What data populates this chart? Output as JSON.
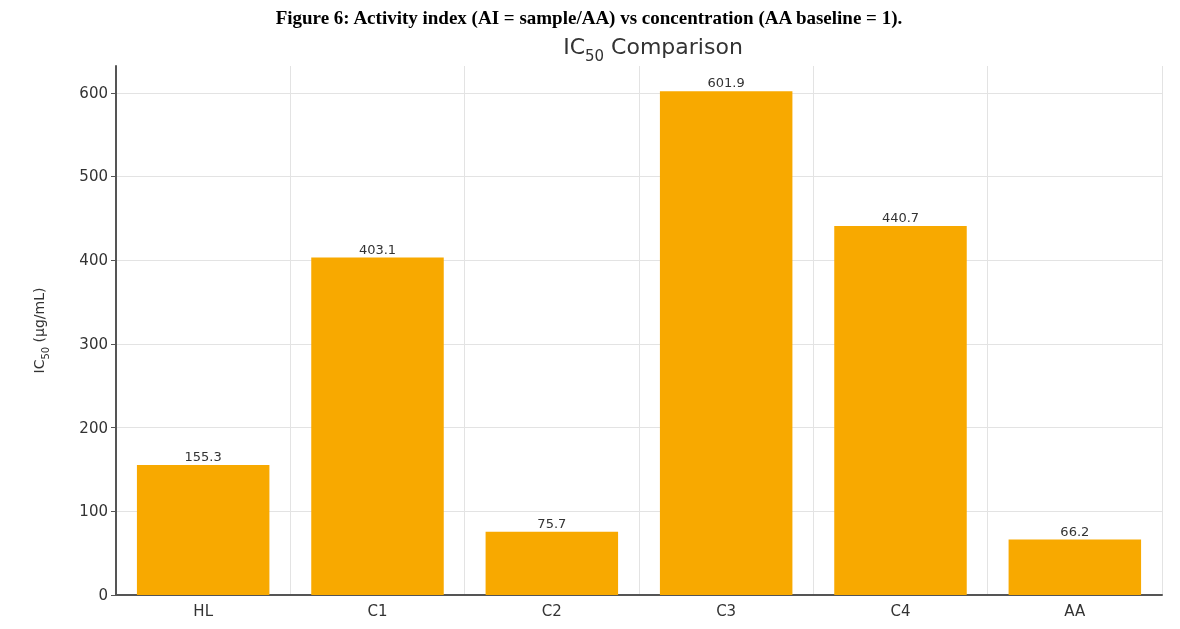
{
  "chart_data": {
    "type": "bar",
    "title": "IC$_{50}$ Comparison",
    "ylabel": "IC$_{50}$ (µg/mL)",
    "annotations": [
      "Figure 6: Activity index (AI = sample/AA) vs concentration (AA baseline = 1)."
    ],
    "categories": [
      "HL",
      "C1",
      "C2",
      "C3",
      "C4",
      "AA"
    ],
    "values": [
      155.3,
      403.1,
      75.7,
      601.9,
      440.7,
      66.2
    ],
    "color": "#f8a900",
    "data_labels": true,
    "ylim": [
      0,
      632
    ],
    "yticks": [
      0,
      100,
      200,
      300,
      400,
      500,
      600
    ],
    "grid": true
  }
}
